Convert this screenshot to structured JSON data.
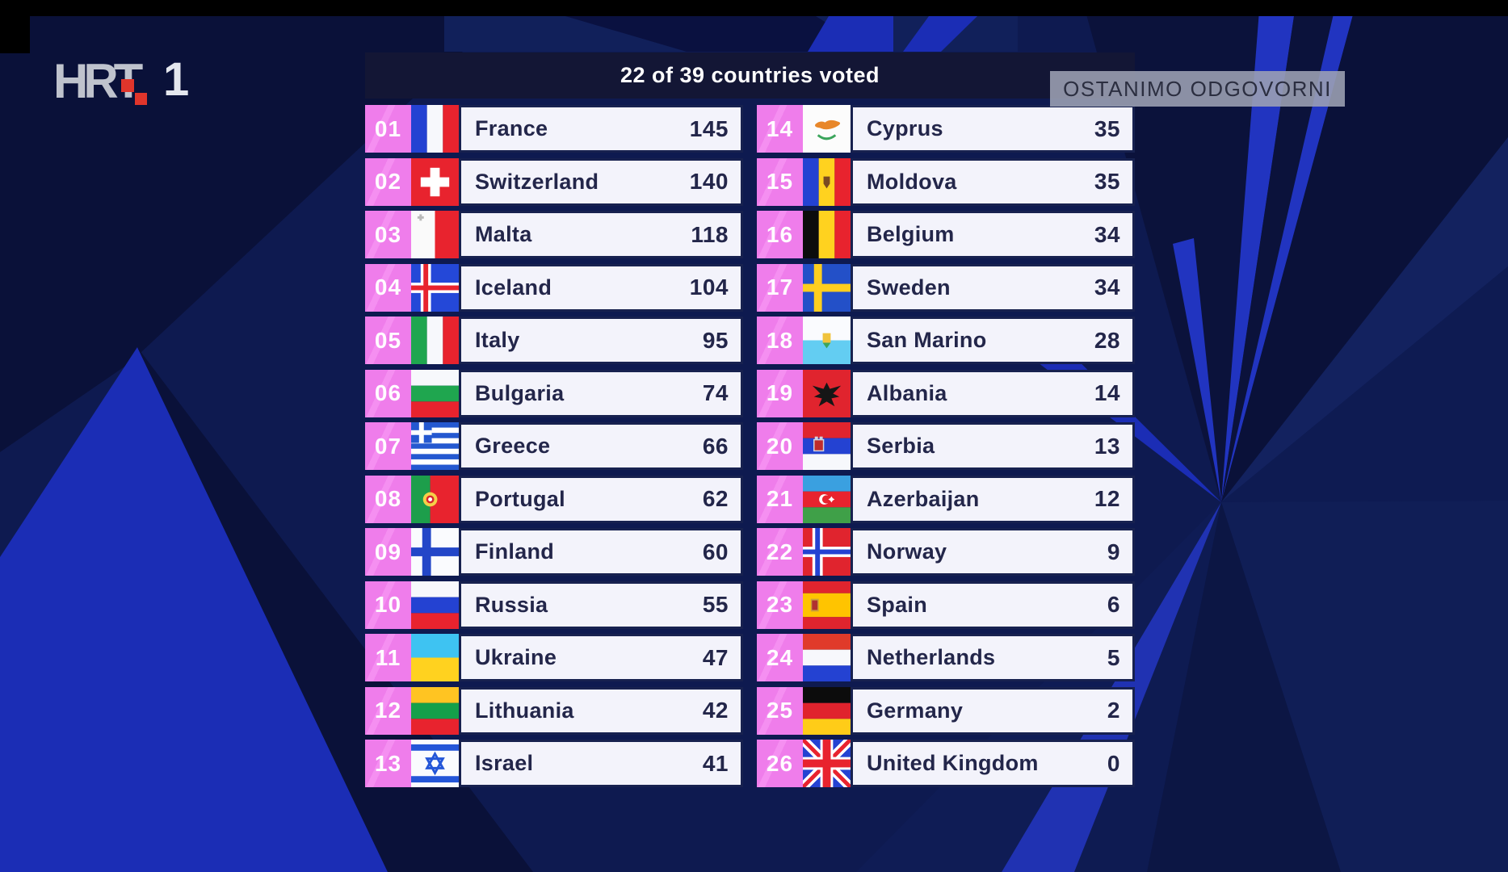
{
  "meta": {
    "broadcaster_logo": "HRT",
    "channel_number": "1"
  },
  "campaign_banner": {
    "text": "OSTANIMO ODGOVORNI"
  },
  "scoreboard": {
    "title": "22 of 39 countries voted",
    "columns": [
      {
        "rows": [
          {
            "rank": "01",
            "country": "France",
            "flag": "fr",
            "score": "145"
          },
          {
            "rank": "02",
            "country": "Switzerland",
            "flag": "ch",
            "score": "140"
          },
          {
            "rank": "03",
            "country": "Malta",
            "flag": "mt",
            "score": "118"
          },
          {
            "rank": "04",
            "country": "Iceland",
            "flag": "is",
            "score": "104"
          },
          {
            "rank": "05",
            "country": "Italy",
            "flag": "it",
            "score": "95"
          },
          {
            "rank": "06",
            "country": "Bulgaria",
            "flag": "bg",
            "score": "74"
          },
          {
            "rank": "07",
            "country": "Greece",
            "flag": "gr",
            "score": "66"
          },
          {
            "rank": "08",
            "country": "Portugal",
            "flag": "pt",
            "score": "62"
          },
          {
            "rank": "09",
            "country": "Finland",
            "flag": "fi",
            "score": "60"
          },
          {
            "rank": "10",
            "country": "Russia",
            "flag": "ru",
            "score": "55"
          },
          {
            "rank": "11",
            "country": "Ukraine",
            "flag": "ua",
            "score": "47"
          },
          {
            "rank": "12",
            "country": "Lithuania",
            "flag": "lt",
            "score": "42"
          },
          {
            "rank": "13",
            "country": "Israel",
            "flag": "il",
            "score": "41"
          }
        ]
      },
      {
        "rows": [
          {
            "rank": "14",
            "country": "Cyprus",
            "flag": "cy",
            "score": "35"
          },
          {
            "rank": "15",
            "country": "Moldova",
            "flag": "md",
            "score": "35"
          },
          {
            "rank": "16",
            "country": "Belgium",
            "flag": "be",
            "score": "34"
          },
          {
            "rank": "17",
            "country": "Sweden",
            "flag": "se",
            "score": "34"
          },
          {
            "rank": "18",
            "country": "San Marino",
            "flag": "sm",
            "score": "28"
          },
          {
            "rank": "19",
            "country": "Albania",
            "flag": "al",
            "score": "14"
          },
          {
            "rank": "20",
            "country": "Serbia",
            "flag": "rs",
            "score": "13"
          },
          {
            "rank": "21",
            "country": "Azerbaijan",
            "flag": "az",
            "score": "12"
          },
          {
            "rank": "22",
            "country": "Norway",
            "flag": "no",
            "score": "9"
          },
          {
            "rank": "23",
            "country": "Spain",
            "flag": "es",
            "score": "6"
          },
          {
            "rank": "24",
            "country": "Netherlands",
            "flag": "nl",
            "score": "5"
          },
          {
            "rank": "25",
            "country": "Germany",
            "flag": "de",
            "score": "2"
          },
          {
            "rank": "26",
            "country": "United Kingdom",
            "flag": "gb",
            "score": "0"
          }
        ]
      }
    ]
  },
  "colors": {
    "background_navy": "#0E1A50",
    "accent_pink": "#EF7DEB",
    "row_background": "#F3F3FB",
    "row_text_navy": "#23264A",
    "header_background": "#131635",
    "header_text": "#FFFFFF",
    "banner_grey": "#9DA2B4",
    "bright_blue_shape": "#1B2DB5",
    "hrt_red": "#E0352B"
  }
}
